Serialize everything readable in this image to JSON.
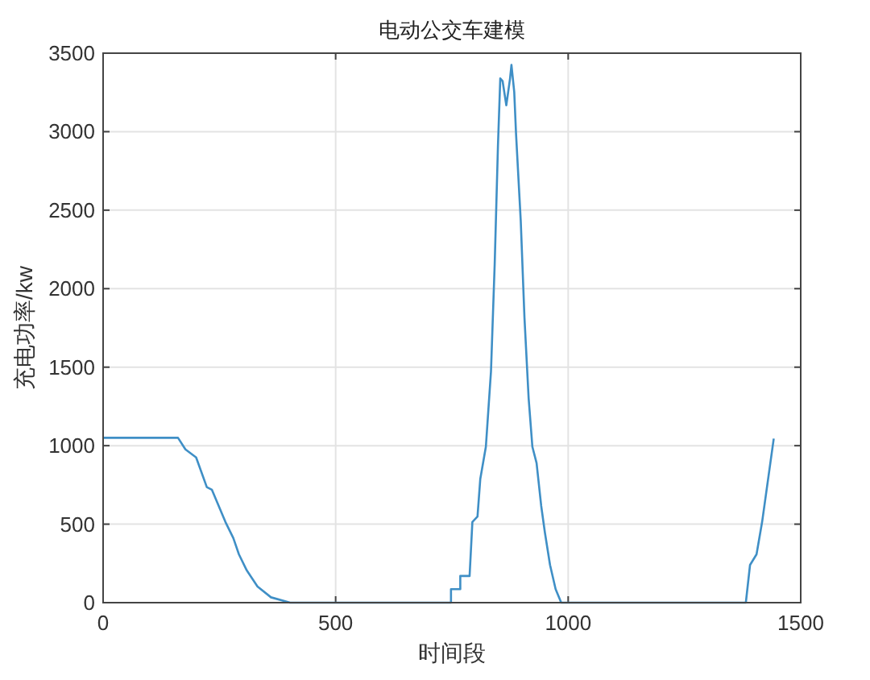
{
  "chart_data": {
    "type": "line",
    "title": "电动公交车建模",
    "xlabel": "时间段",
    "ylabel": "充电功率/kw",
    "x": [
      0,
      161,
      177,
      200,
      223,
      234,
      263,
      280,
      292,
      309,
      332,
      361,
      402,
      748,
      748,
      768,
      768,
      788,
      794,
      805,
      811,
      823,
      834,
      842,
      849,
      854,
      859,
      867,
      875,
      878,
      884,
      888,
      898,
      906,
      915,
      923,
      932,
      942,
      950,
      961,
      973,
      985,
      1382,
      1391,
      1405,
      1417,
      1442
    ],
    "series": [
      {
        "color": "#3f8fc6",
        "values": [
          1050,
          1050,
          976,
          925,
          736,
          719,
          514,
          411,
          308,
          205,
          103,
          34,
          0,
          0,
          86,
          86,
          170,
          170,
          514,
          548,
          788,
          993,
          1473,
          2158,
          2911,
          3339,
          3322,
          3168,
          3339,
          3425,
          3253,
          2980,
          2432,
          1815,
          1301,
          993,
          890,
          616,
          445,
          240,
          86,
          0,
          0,
          240,
          308,
          514,
          1045
        ]
      }
    ],
    "xlim": [
      0,
      1500
    ],
    "xticks": [
      0,
      500,
      1000,
      1500
    ],
    "ylim": [
      0,
      3500
    ],
    "yticks": [
      0,
      500,
      1000,
      1500,
      2000,
      2500,
      3000,
      3500
    ],
    "grid": true
  }
}
